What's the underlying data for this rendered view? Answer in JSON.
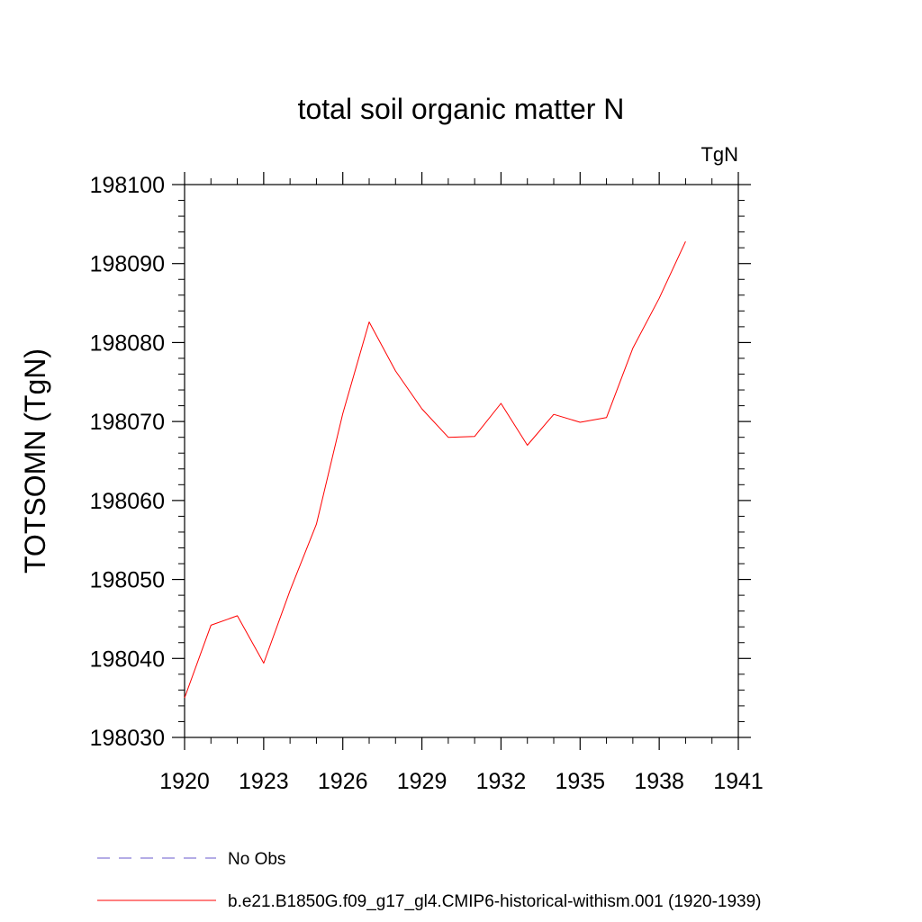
{
  "chart_data": {
    "type": "line",
    "title": "total soil organic matter N",
    "units_label": "TgN",
    "ylabel": "TOTSOMN  (TgN)",
    "xlabel": "",
    "xlim": [
      1920,
      1941
    ],
    "ylim": [
      198030,
      198100
    ],
    "x_ticks": [
      1920,
      1923,
      1926,
      1929,
      1932,
      1935,
      1938,
      1941
    ],
    "y_ticks": [
      198030,
      198040,
      198050,
      198060,
      198070,
      198080,
      198090,
      198100
    ],
    "grid": false,
    "legend_position": "bottom",
    "series": [
      {
        "name": "b.e21.B1850G.f09_g17_gl4.CMIP6-historical-withism.001 (1920-1939)",
        "color": "#ff0000",
        "style": "solid",
        "x": [
          1920,
          1921,
          1922,
          1923,
          1924,
          1925,
          1926,
          1927,
          1928,
          1929,
          1930,
          1931,
          1932,
          1933,
          1934,
          1935,
          1936,
          1937,
          1938,
          1939
        ],
        "y": [
          198035.0,
          198044.2,
          198045.4,
          198039.4,
          198048.6,
          198057.0,
          198071.0,
          198082.6,
          198076.4,
          198071.6,
          198068.0,
          198068.1,
          198072.3,
          198067.0,
          198070.9,
          198069.9,
          198070.5,
          198079.3,
          198085.6,
          198092.8
        ]
      }
    ],
    "legend": [
      {
        "label": "No Obs",
        "color": "#6a5acd",
        "style": "dashed"
      },
      {
        "label": "b.e21.B1850G.f09_g17_gl4.CMIP6-historical-withism.001 (1920-1939)",
        "color": "#ff0000",
        "style": "solid"
      }
    ]
  }
}
